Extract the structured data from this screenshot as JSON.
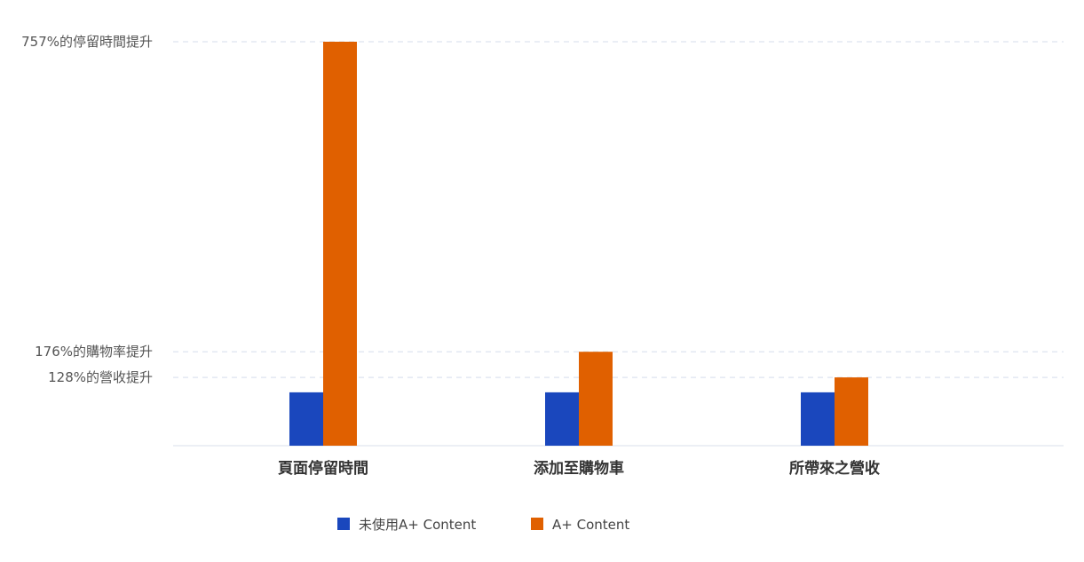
{
  "chart_data": {
    "type": "bar",
    "categories": [
      "頁面停留時間",
      "添加至購物車",
      "所帶來之營收"
    ],
    "series": [
      {
        "name": "未使用A+ Content",
        "values": [
          100,
          100,
          100
        ],
        "color": "#1a47bd"
      },
      {
        "name": "A+ Content",
        "values": [
          757,
          176,
          128
        ],
        "color": "#e06000"
      }
    ],
    "ytick_values": [
      757,
      176,
      128
    ],
    "ytick_labels": [
      "757%的停留時間提升",
      "176%的購物率提升",
      "128%的營收提升"
    ],
    "title": "",
    "xlabel": "",
    "ylabel": "",
    "ylim": [
      0,
      757
    ],
    "grid": true,
    "legend_position": "bottom-center"
  }
}
